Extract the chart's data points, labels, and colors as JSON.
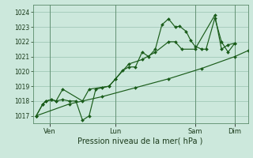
{
  "xlabel": "Pression niveau de la mer( hPa )",
  "bg_color": "#cce8dc",
  "grid_color": "#a0c8b8",
  "line_color": "#1a5c1a",
  "spine_color": "#5a8a6a",
  "ylim": [
    1016.5,
    1024.5
  ],
  "xlim": [
    -3,
    192
  ],
  "day_labels": [
    "Ven",
    "Lun",
    "Sam",
    "Dim"
  ],
  "day_positions": [
    12,
    72,
    144,
    180
  ],
  "yticks": [
    1017,
    1018,
    1019,
    1020,
    1021,
    1022,
    1023,
    1024
  ],
  "series1_wiggly": [
    [
      0,
      1017.0
    ],
    [
      6,
      1017.8
    ],
    [
      9,
      1018.0
    ],
    [
      14,
      1018.1
    ],
    [
      18,
      1018.0
    ],
    [
      24,
      1018.1
    ],
    [
      30,
      1018.0
    ],
    [
      36,
      1018.0
    ],
    [
      42,
      1016.7
    ],
    [
      48,
      1017.0
    ],
    [
      54,
      1018.8
    ],
    [
      60,
      1018.9
    ],
    [
      66,
      1019.0
    ],
    [
      72,
      1019.5
    ],
    [
      78,
      1020.05
    ],
    [
      84,
      1020.3
    ],
    [
      90,
      1020.3
    ],
    [
      96,
      1021.3
    ],
    [
      102,
      1021.0
    ],
    [
      108,
      1021.5
    ],
    [
      114,
      1023.15
    ],
    [
      120,
      1023.55
    ],
    [
      126,
      1023.0
    ],
    [
      130,
      1023.05
    ],
    [
      136,
      1022.7
    ],
    [
      140,
      1022.1
    ],
    [
      144,
      1021.7
    ],
    [
      150,
      1021.5
    ],
    [
      154,
      1021.5
    ],
    [
      162,
      1023.6
    ],
    [
      168,
      1022.0
    ],
    [
      174,
      1021.3
    ],
    [
      180,
      1021.9
    ]
  ],
  "series2_trend": [
    [
      0,
      1017.0
    ],
    [
      30,
      1017.8
    ],
    [
      60,
      1018.3
    ],
    [
      90,
      1018.9
    ],
    [
      120,
      1019.5
    ],
    [
      150,
      1020.2
    ],
    [
      180,
      1021.0
    ],
    [
      192,
      1021.4
    ]
  ],
  "series3_peak": [
    [
      0,
      1017.0
    ],
    [
      6,
      1017.8
    ],
    [
      9,
      1018.0
    ],
    [
      14,
      1018.1
    ],
    [
      18,
      1018.0
    ],
    [
      24,
      1018.8
    ],
    [
      42,
      1018.0
    ],
    [
      48,
      1018.8
    ],
    [
      66,
      1019.0
    ],
    [
      72,
      1019.5
    ],
    [
      84,
      1020.5
    ],
    [
      96,
      1020.8
    ],
    [
      108,
      1021.3
    ],
    [
      120,
      1022.0
    ],
    [
      126,
      1022.0
    ],
    [
      132,
      1021.5
    ],
    [
      144,
      1021.5
    ],
    [
      162,
      1023.8
    ],
    [
      168,
      1021.5
    ],
    [
      174,
      1021.8
    ],
    [
      180,
      1021.9
    ]
  ]
}
